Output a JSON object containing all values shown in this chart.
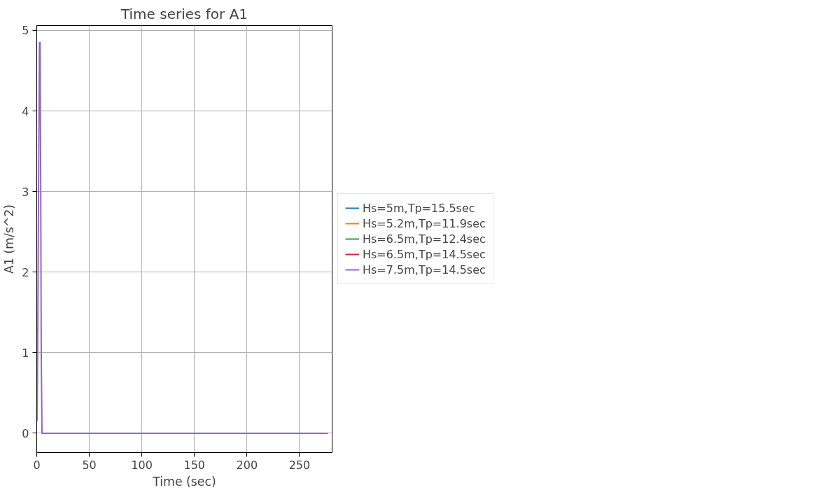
{
  "chart_data": {
    "type": "line",
    "title": "Time series for A1",
    "xlabel": "Time (sec)",
    "ylabel": "A1 (m/s^2)",
    "x": [
      0.4,
      1.0,
      1.8,
      2.6,
      3.2,
      3.8,
      4.3,
      5.0,
      277
    ],
    "series": [
      {
        "name": "Hs=5m,Tp=15.5sec",
        "color": "#1f77b4",
        "values": [
          null,
          null,
          null,
          null,
          null,
          null,
          null,
          null,
          null
        ]
      },
      {
        "name": "Hs=5.2m,Tp=11.9sec",
        "color": "#ff7f0e",
        "values": [
          null,
          null,
          null,
          null,
          null,
          null,
          null,
          null,
          null
        ]
      },
      {
        "name": "Hs=6.5m,Tp=12.4sec",
        "color": "#2ca02c",
        "values": [
          null,
          null,
          null,
          null,
          null,
          null,
          null,
          null,
          null
        ]
      },
      {
        "name": "Hs=6.5m,Tp=14.5sec",
        "color": "#d62728",
        "values": [
          null,
          null,
          null,
          null,
          null,
          null,
          null,
          null,
          null
        ]
      },
      {
        "name": "Hs=7.5m,Tp=14.5sec",
        "color": "#9467bd",
        "values": [
          0.15,
          1.3,
          3.2,
          4.85,
          4.85,
          3.0,
          1.0,
          0,
          0
        ]
      }
    ],
    "xlim": [
      0,
      281
    ],
    "ylim": [
      -0.24,
      5.06
    ],
    "xticks": [
      0,
      50,
      100,
      150,
      200,
      250
    ],
    "yticks": [
      0,
      1,
      2,
      3,
      4,
      5
    ],
    "grid": true,
    "legend": "right",
    "marker": "none",
    "line_style": "solid"
  }
}
